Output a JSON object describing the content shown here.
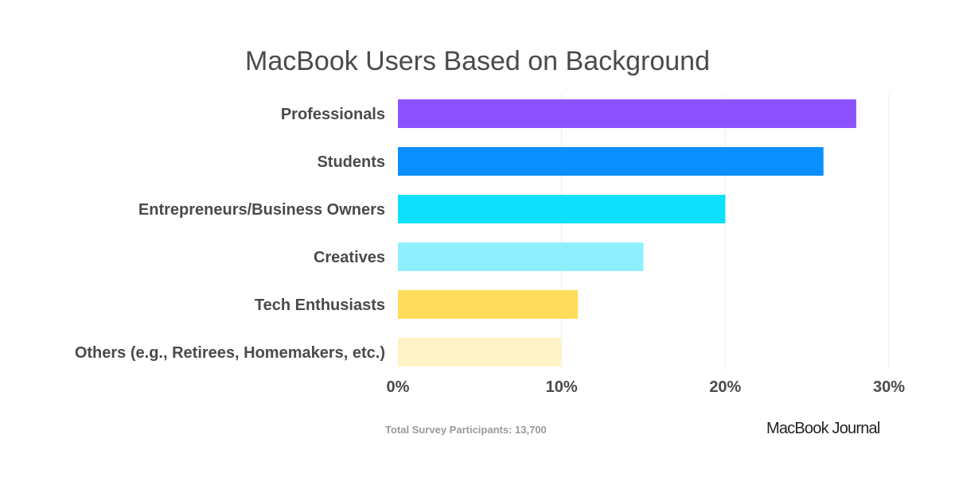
{
  "chart_data": {
    "type": "bar",
    "orientation": "horizontal",
    "title": "MacBook Users Based on Background",
    "categories": [
      "Professionals",
      "Students",
      "Entrepreneurs/Business Owners",
      "Creatives",
      "Tech Enthusiasts",
      "Others (e.g., Retirees, Homemakers, etc.)"
    ],
    "values": [
      28,
      26,
      20,
      15,
      11,
      10
    ],
    "colors": [
      "#8c52ff",
      "#0b8ffc",
      "#0ce0fb",
      "#8ef0fc",
      "#ffdd5c",
      "#fff3c7"
    ],
    "xlim": [
      0,
      30
    ],
    "xticks": [
      0,
      10,
      20,
      30
    ],
    "xtick_labels": [
      "0%",
      "10%",
      "20%",
      "30%"
    ],
    "unit": "%",
    "grid": "vertical",
    "xlabel": "",
    "ylabel": ""
  },
  "footnote": "Total Survey Participants: 13,700",
  "brand": "MacBook Journal"
}
